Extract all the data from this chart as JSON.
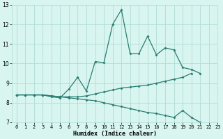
{
  "xlabel": "Humidex (Indice chaleur)",
  "x_values": [
    0,
    1,
    2,
    3,
    4,
    5,
    6,
    7,
    8,
    9,
    10,
    11,
    12,
    13,
    14,
    15,
    16,
    17,
    18,
    19,
    20,
    21,
    22,
    23
  ],
  "line1_y": [
    8.4,
    8.4,
    8.4,
    8.4,
    8.3,
    8.25,
    8.7,
    9.3,
    8.6,
    10.1,
    10.05,
    12.0,
    12.75,
    10.5,
    10.5,
    11.4,
    10.45,
    10.8,
    10.7,
    9.8,
    9.7,
    9.5,
    null,
    null
  ],
  "line2_y": [
    8.4,
    8.4,
    8.4,
    8.4,
    8.35,
    8.3,
    8.3,
    8.3,
    8.35,
    8.45,
    8.55,
    8.65,
    8.75,
    8.8,
    8.85,
    8.9,
    9.0,
    9.1,
    9.2,
    9.3,
    9.5,
    null,
    null,
    null
  ],
  "line3_y": [
    8.4,
    8.4,
    8.4,
    8.4,
    8.35,
    8.3,
    8.25,
    8.2,
    8.15,
    8.1,
    8.0,
    7.9,
    7.8,
    7.7,
    7.6,
    7.5,
    7.45,
    7.35,
    7.25,
    7.6,
    7.25,
    7.0,
    6.9,
    6.72
  ],
  "line_color": "#2a7d72",
  "bg_color": "#d8f5f0",
  "grid_color": "#b0ddd8",
  "ylim": [
    7,
    13
  ],
  "xlim": [
    -0.5,
    23
  ],
  "yticks": [
    7,
    8,
    9,
    10,
    11,
    12,
    13
  ],
  "xticks": [
    0,
    1,
    2,
    3,
    4,
    5,
    6,
    7,
    8,
    9,
    10,
    11,
    12,
    13,
    14,
    15,
    16,
    17,
    18,
    19,
    20,
    21,
    22,
    23
  ]
}
